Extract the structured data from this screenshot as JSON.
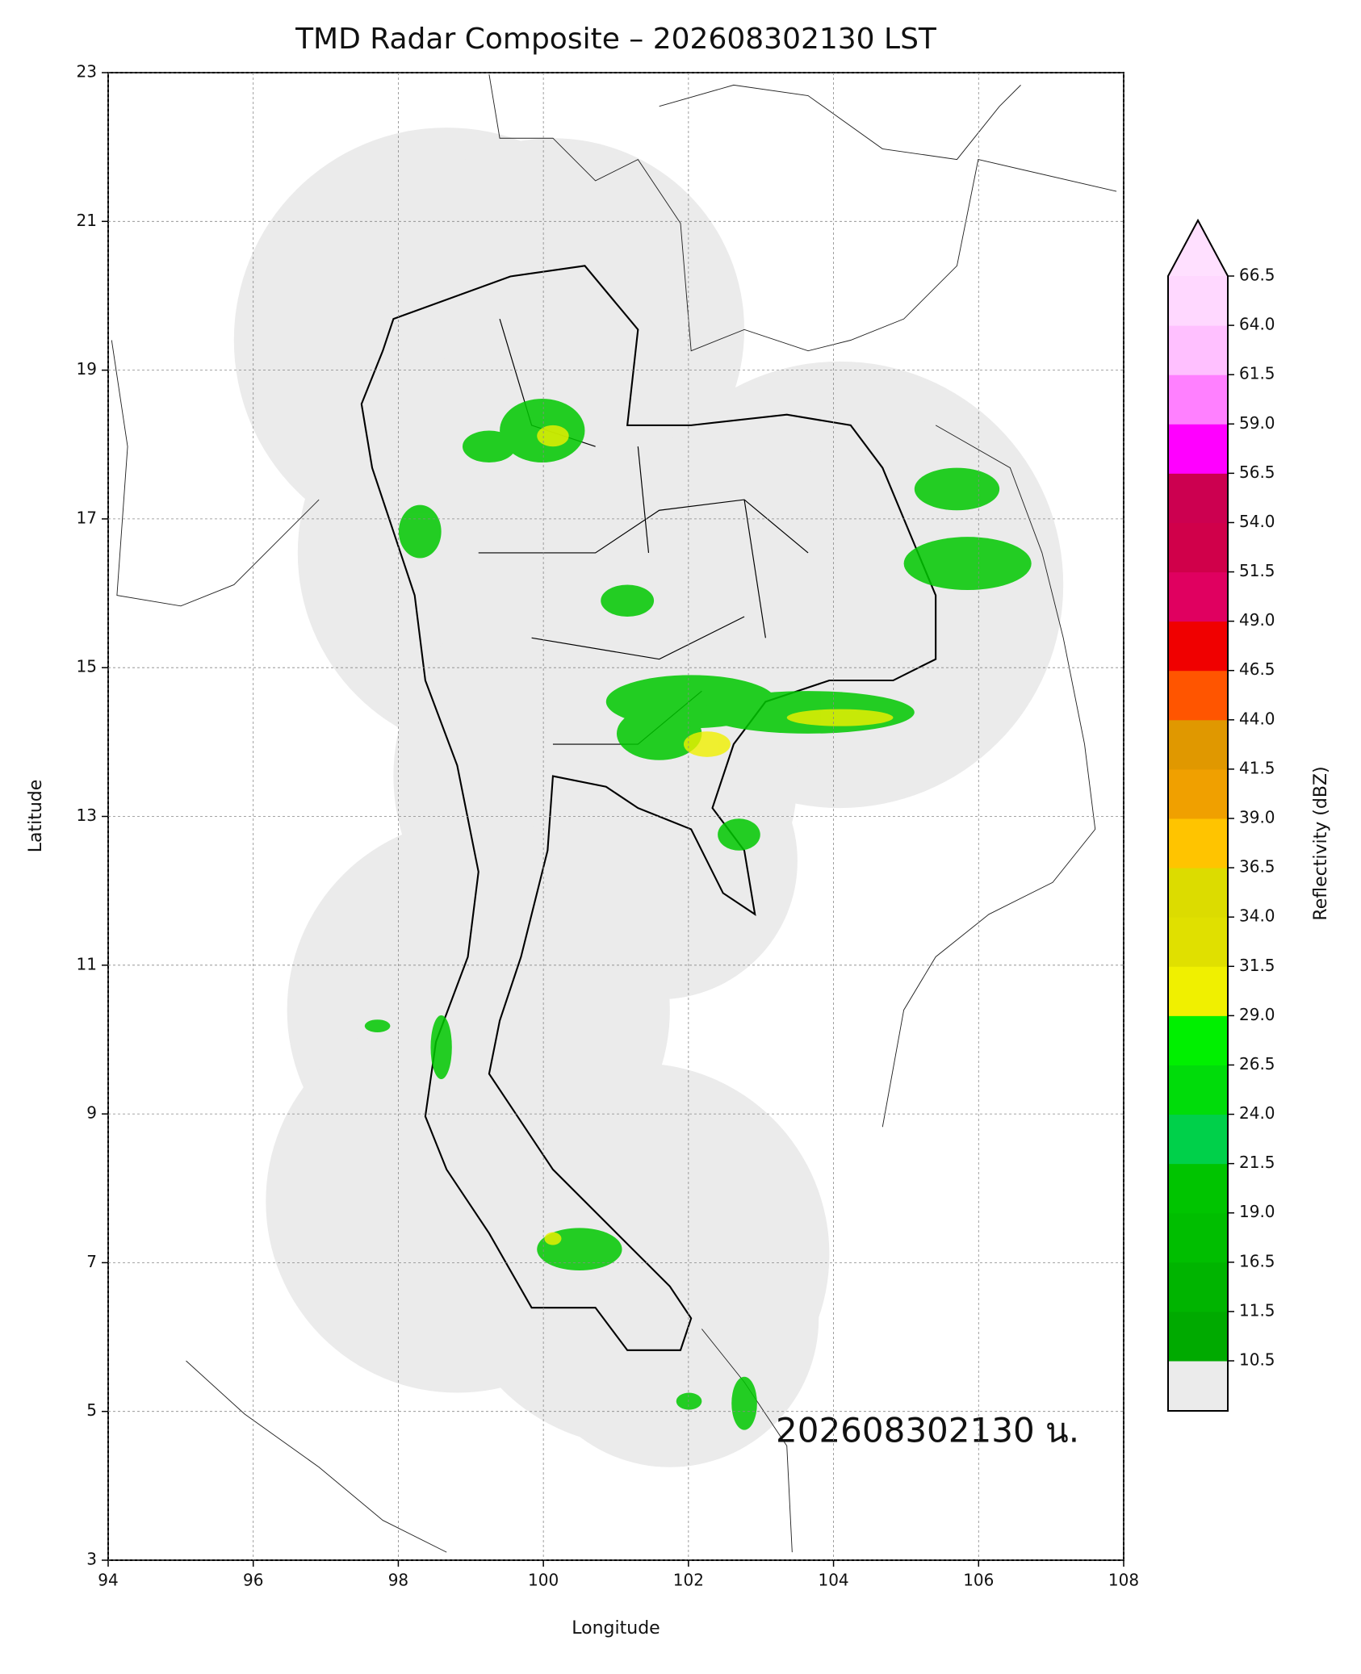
{
  "chart_data": {
    "type": "map",
    "title": "TMD Radar Composite – 202608302130 LST",
    "x_label": "Longitude",
    "y_label": "Latitude",
    "xlim": [
      94,
      108
    ],
    "ylim": [
      3,
      23
    ],
    "xticks": [
      94,
      96,
      98,
      100,
      102,
      104,
      106,
      108
    ],
    "yticks": [
      3,
      5,
      7,
      9,
      11,
      13,
      15,
      17,
      19,
      21,
      23
    ],
    "grid": true,
    "annotation": "202608302130 น.",
    "colorbar": {
      "label": "Reflectivity (dBZ)",
      "ticks": [
        10.5,
        11.5,
        16.5,
        {
          "value": 19,
          "label": "19.0"
        },
        21.5,
        {
          "value": 24,
          "label": "24.0"
        },
        26.5,
        {
          "value": 29,
          "label": "29.0"
        },
        31.5,
        {
          "value": 34,
          "label": "34.0"
        },
        36.5,
        {
          "value": 39,
          "label": "39.0"
        },
        41.5,
        {
          "value": 44,
          "label": "44.0"
        },
        46.5,
        {
          "value": 49,
          "label": "49.0"
        },
        51.5,
        {
          "value": 54,
          "label": "54.0"
        },
        56.5,
        {
          "value": 59,
          "label": "59.0"
        },
        61.5,
        {
          "value": 64,
          "label": "64.0"
        },
        66.5
      ],
      "colors": [
        "#00aa00",
        "#00b400",
        "#00be00",
        "#00c400",
        "#00d04a",
        "#00dc0a",
        "#00f000",
        "#f0f000",
        "#e0e000",
        "#dcdc00",
        "#ffc400",
        "#f0a000",
        "#e09800",
        "#ff5500",
        "#f00000",
        "#e00060",
        "#d0004a",
        "#cc0050",
        "#ff00ff",
        "#ff80ff",
        "#ffc0ff",
        "#ffd8ff"
      ],
      "under_color": "#ebebeb",
      "over_color": "#ffe0ff"
    }
  }
}
